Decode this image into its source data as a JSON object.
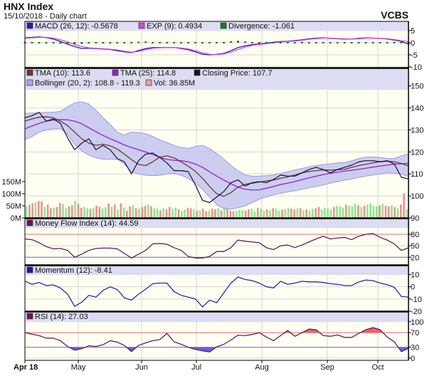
{
  "header": {
    "title": "HNX Index",
    "subtitle": "15/10/2018 - Daily chart",
    "brand": "VCBS"
  },
  "colors": {
    "plot_bg": "#fffff2",
    "legend_bg": "#dcdcf2",
    "grid": "#d6d6d6",
    "up_volume": "#90e890",
    "down_volume": "#e89494",
    "overbought": "#e07070",
    "oversold": "#7070e0"
  },
  "chart_data": [
    {
      "id": "macd",
      "type": "line",
      "ylim": [
        -10.3,
        8.8
      ],
      "ticks": [
        5,
        0,
        -5,
        -10
      ],
      "legend": [
        {
          "label": "MACD (26, 12): -0.5678",
          "color": "#2020c0"
        },
        {
          "label": "EXP (9): 0.4934",
          "color": "#e040e0"
        },
        {
          "label": "Divergence: -1.061",
          "color": "#108010"
        }
      ],
      "series": [
        {
          "name": "MACD (26, 12)",
          "color": "#2020c0",
          "values": [
            2,
            2.2,
            2.4,
            2.1,
            1.5,
            0.5,
            -0.6,
            -1.6,
            -2.4,
            -2.3,
            -2.4,
            -2.6,
            -2.8,
            -3.3,
            -3.8,
            -4.1,
            -3.2,
            -2.4,
            -2,
            -2,
            -2,
            -2,
            -2.4,
            -2.9,
            -3.8,
            -4.8,
            -5,
            -4.8,
            -4.4,
            -3.3,
            -2,
            -1.3,
            -0.8,
            -0.5,
            -0.2,
            0.2,
            0.5,
            0.6,
            0.9,
            1.2,
            1.6,
            1.9,
            2,
            1.8,
            1.6,
            1.5,
            1.5,
            1.8,
            2,
            1.9,
            1.8,
            1.5,
            1.1,
            0.5,
            -0.5678
          ]
        },
        {
          "name": "EXP (9)",
          "color": "#e040e0",
          "values": [
            1.8,
            2,
            2.2,
            2.2,
            1.9,
            1.2,
            0.3,
            -0.7,
            -1.6,
            -2.1,
            -2.3,
            -2.5,
            -2.7,
            -3,
            -3.5,
            -3.9,
            -3.6,
            -2.9,
            -2.3,
            -2.1,
            -2,
            -2,
            -2.2,
            -2.6,
            -3.3,
            -4.2,
            -4.8,
            -4.9,
            -4.6,
            -3.9,
            -2.8,
            -1.8,
            -1.1,
            -0.7,
            -0.4,
            -0.1,
            0.3,
            0.5,
            0.7,
            1,
            1.4,
            1.7,
            1.9,
            1.9,
            1.7,
            1.6,
            1.5,
            1.6,
            1.9,
            1.9,
            1.8,
            1.6,
            1.3,
            0.8,
            0.4934
          ]
        },
        {
          "name": "Divergence",
          "color": "#108010",
          "kind": "bar",
          "values": [
            0.2,
            0.2,
            0.2,
            -0.1,
            -0.4,
            -0.7,
            -0.9,
            -0.9,
            -0.8,
            -0.2,
            -0.1,
            -0.1,
            -0.1,
            -0.3,
            -0.3,
            -0.2,
            0.4,
            0.5,
            0.3,
            0.1,
            0,
            0,
            -0.2,
            -0.3,
            -0.5,
            -0.6,
            -0.2,
            0.1,
            0.2,
            0.6,
            0.8,
            0.5,
            0.3,
            0.2,
            0.2,
            0.3,
            0.2,
            0.1,
            0.2,
            0.2,
            0.2,
            0.2,
            0.1,
            -0.1,
            -0.1,
            -0.1,
            0,
            0.2,
            0.1,
            0,
            0,
            -0.1,
            -0.2,
            -0.3,
            -1.061
          ]
        }
      ]
    },
    {
      "id": "price",
      "type": "line",
      "ylim": [
        90,
        158
      ],
      "ticks": [
        150,
        140,
        130,
        120,
        110,
        100,
        90
      ],
      "legend": [
        {
          "label": "TMA (10): 113.6",
          "color": "#6b3a2a"
        },
        {
          "label": "TMA (25): 114.8",
          "color": "#9020d0"
        },
        {
          "label": "Closing Price: 107.7",
          "color": "#101030"
        },
        {
          "label": "Bollinger (20, 2): 108.8 - 119.3",
          "color": "#a8a8ec"
        },
        {
          "label": "Vol: 36.85M",
          "color": "#e8a0a0"
        }
      ],
      "bollinger": {
        "upper": [
          137.5,
          137.7,
          137.8,
          138,
          138,
          138.5,
          140.5,
          142.3,
          142.8,
          141.8,
          139,
          135.5,
          132.5,
          129,
          127.7,
          129,
          128.8,
          128.3,
          127,
          125.5,
          124.2,
          123,
          122,
          121.6,
          122.5,
          123,
          121.5,
          119.2,
          116.8,
          113.8,
          111.5,
          109.5,
          109,
          109,
          109.2,
          109.5,
          110.3,
          111,
          111.8,
          112.5,
          113.2,
          113.8,
          114.2,
          114.6,
          115,
          115.2,
          116,
          117,
          117.6,
          117.8,
          117.5,
          117,
          117,
          118.2,
          119.3
        ],
        "lower": [
          125.5,
          127,
          129,
          130,
          130.5,
          130.7,
          128,
          123.5,
          120.5,
          118.5,
          117.3,
          116.7,
          116.7,
          116.7,
          114.5,
          111,
          110,
          109.4,
          109.2,
          109.4,
          110,
          110.2,
          109.4,
          108,
          106,
          103,
          99.5,
          96,
          94.2,
          94,
          94.6,
          95.5,
          97,
          98.5,
          99.6,
          100.5,
          101.2,
          101.8,
          102.4,
          103,
          103.7,
          104.3,
          105,
          105.8,
          106.5,
          107.1,
          107.7,
          108.4,
          109,
          109.5,
          110,
          110.5,
          110.4,
          110,
          108.8
        ]
      },
      "series": [
        {
          "name": "TMA (25)",
          "color": "#9020d0",
          "values": [
            130.5,
            131.8,
            133,
            134,
            134.5,
            134.7,
            134.6,
            134,
            132.8,
            131,
            129.2,
            127.5,
            126,
            124.6,
            123.2,
            122,
            121,
            120,
            118.8,
            117.5,
            116.6,
            116.2,
            116,
            115.5,
            114.5,
            113,
            111,
            109,
            107.2,
            105.5,
            104,
            103,
            102.7,
            102.8,
            103.5,
            104.3,
            105.2,
            105.8,
            106.5,
            107.4,
            108.2,
            109,
            109.7,
            110.3,
            110.8,
            111.3,
            111.7,
            112.1,
            112.6,
            113.1,
            113.6,
            114,
            114.4,
            114.6,
            114.8
          ]
        },
        {
          "name": "TMA (10)",
          "color": "#6b3a2a",
          "values": [
            134,
            135,
            135.8,
            136,
            135.5,
            134,
            132,
            129,
            126,
            124,
            123,
            123.5,
            122.8,
            121.3,
            119,
            116.5,
            114.3,
            113.8,
            115.5,
            117.7,
            118.2,
            117.3,
            115.5,
            113.5,
            111.2,
            108,
            104.3,
            101,
            99.8,
            101.5,
            104,
            105.3,
            105.8,
            106.3,
            106.8,
            107.2,
            108,
            108.7,
            109.5,
            110.5,
            111.1,
            111.5,
            111.8,
            111.8,
            111.9,
            112.1,
            113,
            113.8,
            114.4,
            115,
            115.6,
            115.8,
            115.5,
            114.8,
            113.6
          ]
        },
        {
          "name": "Closing Price",
          "color": "#101030",
          "values": [
            135.5,
            136.5,
            138,
            134,
            135,
            133,
            126.5,
            121,
            124,
            126,
            121,
            123,
            121,
            117,
            115.5,
            110,
            116,
            119,
            119.5,
            117.5,
            115,
            111.5,
            111.5,
            111,
            105,
            98,
            97,
            99.5,
            102,
            106,
            107.3,
            104.5,
            106,
            106.5,
            106,
            107.5,
            109.5,
            109,
            109,
            110.5,
            112,
            113,
            112,
            110.5,
            112,
            113,
            114,
            115.5,
            116,
            116,
            115.5,
            116,
            114.5,
            108.5,
            107.7
          ]
        }
      ]
    },
    {
      "id": "volume",
      "type": "bar",
      "ylim": [
        0,
        618
      ],
      "ticks": [
        {
          "v": 150,
          "label": "150M"
        },
        {
          "v": 100,
          "label": "100M"
        },
        {
          "v": 50,
          "label": "50M"
        },
        {
          "v": 0,
          "label": "0M"
        }
      ],
      "unit": "M",
      "values": [
        48,
        55,
        60,
        65,
        70,
        68,
        45,
        55,
        40,
        42,
        45,
        62,
        58,
        40,
        48,
        52,
        70,
        58,
        42,
        45,
        40,
        38,
        42,
        50,
        46,
        38,
        44,
        60,
        45,
        55,
        35,
        60,
        42,
        30,
        48,
        52,
        40,
        38,
        45,
        50,
        55,
        48,
        40,
        38,
        32,
        40,
        35,
        45,
        38,
        42,
        36,
        30,
        35,
        42,
        40,
        35,
        30,
        32,
        38,
        28,
        30,
        38,
        35,
        40,
        32,
        45,
        38,
        30,
        28,
        30,
        35,
        32,
        30,
        36,
        38,
        28,
        42,
        38,
        30,
        35,
        32,
        40,
        38,
        30,
        35,
        36,
        42,
        38,
        35,
        40,
        40,
        32,
        35,
        30,
        38,
        40,
        45,
        35,
        42,
        40,
        35,
        45,
        50,
        48,
        42,
        55,
        50,
        48,
        58,
        52,
        45,
        50,
        55,
        60,
        50,
        48,
        52,
        58,
        50,
        48,
        52,
        45,
        40,
        55,
        102,
        36.85
      ],
      "up": [
        1,
        0,
        0,
        1,
        0,
        0,
        1,
        0,
        0,
        1,
        0,
        0,
        1,
        1,
        0,
        0,
        1,
        0,
        0,
        1,
        1,
        0,
        1,
        0,
        0,
        1,
        1,
        0,
        1,
        0,
        1,
        0,
        1,
        0,
        0,
        1,
        0,
        1,
        0,
        0,
        1,
        0,
        1,
        1,
        0,
        1,
        0,
        0,
        1,
        1,
        0,
        1,
        1,
        0,
        0,
        1,
        0,
        1,
        0,
        0,
        1,
        0,
        0,
        1,
        0,
        1,
        0,
        0,
        0,
        1,
        1,
        1,
        0,
        0,
        1,
        1,
        0,
        1,
        1,
        0,
        1,
        0,
        1,
        1,
        0,
        1,
        1,
        0,
        0,
        1,
        0,
        1,
        0,
        1,
        1,
        0,
        0,
        1,
        1,
        1,
        1,
        0,
        1,
        1,
        1,
        0,
        1,
        1,
        1,
        0,
        1,
        0,
        1,
        1,
        1,
        1,
        0,
        1,
        0,
        0,
        1,
        0,
        1,
        0,
        0,
        1
      ]
    },
    {
      "id": "mfi",
      "type": "line",
      "ylim": [
        0,
        121
      ],
      "ticks": [
        80,
        50,
        20
      ],
      "overbought": 80,
      "oversold": 20,
      "legend": [
        {
          "label": "Money Flow Index (14): 44.59",
          "color": "#701060"
        }
      ],
      "series": [
        {
          "name": "Money Flow Index (14)",
          "color": "#602060",
          "values": [
            68,
            66,
            58,
            48,
            42,
            43,
            38,
            20,
            28,
            38,
            43,
            44,
            44,
            42,
            30,
            18,
            28,
            38,
            55,
            56,
            54,
            45,
            38,
            22,
            18,
            18,
            22,
            35,
            35,
            45,
            65,
            62,
            60,
            58,
            45,
            40,
            50,
            52,
            45,
            52,
            60,
            68,
            75,
            68,
            70,
            72,
            66,
            75,
            80,
            82,
            72,
            65,
            55,
            38,
            44.59
          ]
        }
      ]
    },
    {
      "id": "momentum",
      "type": "line",
      "ylim": [
        -20,
        17.3
      ],
      "ticks": [
        10,
        0,
        -10,
        -20
      ],
      "legend": [
        {
          "label": "Momentum (12): -8.41",
          "color": "#1818b0"
        }
      ],
      "series": [
        {
          "name": "Momentum (12)",
          "color": "#2828b0",
          "values": [
            4.6,
            2,
            3.5,
            1,
            1.5,
            -1,
            -6,
            -16,
            -12.7,
            -7,
            -8.5,
            -3,
            0,
            -2.3,
            -9,
            -11,
            -6,
            -2,
            2.5,
            3,
            3,
            -4,
            -7,
            -8.5,
            -10,
            -16.5,
            -11,
            -13,
            -5,
            3,
            8,
            6,
            5,
            3,
            0,
            -1,
            4.5,
            2,
            3,
            4.5,
            4,
            4,
            3.5,
            2.5,
            2,
            1,
            1,
            4,
            5.5,
            5,
            3,
            1.7,
            -0.5,
            -8,
            -8.41
          ]
        }
      ]
    },
    {
      "id": "rsi",
      "type": "line",
      "ylim": [
        -6,
        127
      ],
      "ticks": [
        100,
        70,
        30,
        0
      ],
      "overbought": 70,
      "oversold": 30,
      "legend": [
        {
          "label": "RSI (14): 27.03",
          "color": "#701060"
        }
      ],
      "series": [
        {
          "name": "RSI (14)",
          "color": "#602060",
          "values": [
            70,
            66,
            62,
            55,
            55,
            48,
            32,
            22,
            26,
            34,
            32,
            37,
            48,
            44,
            35,
            18,
            35,
            42,
            48,
            51,
            68,
            45,
            38,
            30,
            24,
            20,
            17,
            31,
            38,
            50,
            63,
            62,
            65,
            70,
            58,
            48,
            62,
            76,
            60,
            70,
            80,
            78,
            62,
            60,
            64,
            57,
            57,
            68,
            78,
            84,
            78,
            58,
            45,
            18,
            27.03
          ]
        }
      ]
    }
  ],
  "x_axis": {
    "labels": [
      "Apr 18",
      "May",
      "Jun",
      "Jul",
      "Aug",
      "Sep",
      "Oct"
    ]
  }
}
